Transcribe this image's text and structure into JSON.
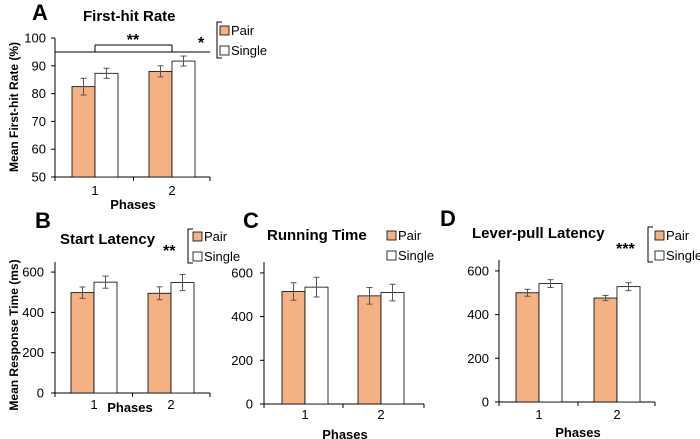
{
  "colors": {
    "pair": "#F4B183",
    "single": "#FFFFFF",
    "stroke": "#000000",
    "error": "#555555"
  },
  "chart_data": [
    {
      "panel": "A",
      "type": "bar",
      "title": "First-hit Rate",
      "xlabel": "Phases",
      "ylabel": "Mean First-hit Rate (%)",
      "categories": [
        "1",
        "2"
      ],
      "ylim": [
        50,
        100
      ],
      "yticks": [
        "50",
        "60",
        "70",
        "80",
        "90",
        "100"
      ],
      "series": [
        {
          "name": "Pair",
          "values": [
            82.5,
            88.0
          ],
          "errors": [
            3.0,
            2.0
          ]
        },
        {
          "name": "Single",
          "values": [
            87.3,
            91.7
          ],
          "errors": [
            1.8,
            1.8
          ]
        }
      ],
      "annotations": {
        "phase": "**",
        "condition": "*"
      }
    },
    {
      "panel": "B",
      "type": "bar",
      "title": "Start Latency",
      "xlabel": "Phases",
      "ylabel": "Mean Response Time (ms)",
      "categories": [
        "1",
        "2"
      ],
      "ylim": [
        0,
        650
      ],
      "yticks": [
        "0",
        "200",
        "400",
        "600"
      ],
      "series": [
        {
          "name": "Pair",
          "values": [
            498,
            495
          ],
          "errors": [
            28,
            32
          ]
        },
        {
          "name": "Single",
          "values": [
            550,
            548
          ],
          "errors": [
            30,
            40
          ]
        }
      ],
      "annotations": {
        "condition": "**"
      }
    },
    {
      "panel": "C",
      "type": "bar",
      "title": "Running Time",
      "xlabel": "Phases",
      "ylabel": "",
      "categories": [
        "1",
        "2"
      ],
      "ylim": [
        0,
        650
      ],
      "yticks": [
        "0",
        "200",
        "400",
        "600"
      ],
      "series": [
        {
          "name": "Pair",
          "values": [
            515,
            495
          ],
          "errors": [
            40,
            38
          ]
        },
        {
          "name": "Single",
          "values": [
            535,
            510
          ],
          "errors": [
            45,
            38
          ]
        }
      ],
      "annotations": {}
    },
    {
      "panel": "D",
      "type": "bar",
      "title": "Lever-pull Latency",
      "xlabel": "Phases",
      "ylabel": "",
      "categories": [
        "1",
        "2"
      ],
      "ylim": [
        0,
        650
      ],
      "yticks": [
        "0",
        "200",
        "400",
        "600"
      ],
      "series": [
        {
          "name": "Pair",
          "values": [
            500,
            476
          ],
          "errors": [
            16,
            12
          ]
        },
        {
          "name": "Single",
          "values": [
            542,
            528
          ],
          "errors": [
            18,
            18
          ]
        }
      ],
      "annotations": {
        "condition": "***"
      }
    }
  ]
}
